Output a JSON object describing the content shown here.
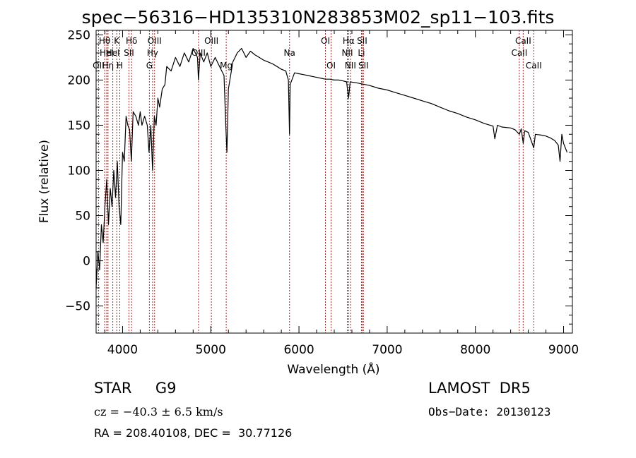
{
  "chart_data": {
    "type": "line",
    "title": "spec−56316−HD135310N283853M02_sp11−103.fits",
    "xlabel": "Wavelength (Å)",
    "ylabel": "Flux (relative)",
    "xlim": [
      3700,
      9100
    ],
    "ylim": [
      -80,
      255
    ],
    "x_ticks": [
      4000,
      5000,
      6000,
      7000,
      8000,
      9000
    ],
    "y_ticks": [
      -50,
      0,
      50,
      100,
      150,
      200,
      250
    ],
    "grid": false,
    "series": [
      {
        "color": "#000000",
        "points": [
          [
            3700,
            -30
          ],
          [
            3720,
            10
          ],
          [
            3740,
            -10
          ],
          [
            3760,
            40
          ],
          [
            3780,
            20
          ],
          [
            3800,
            60
          ],
          [
            3820,
            90
          ],
          [
            3840,
            40
          ],
          [
            3860,
            80
          ],
          [
            3880,
            60
          ],
          [
            3900,
            100
          ],
          [
            3920,
            70
          ],
          [
            3940,
            110
          ],
          [
            3960,
            60
          ],
          [
            3980,
            40
          ],
          [
            4000,
            120
          ],
          [
            4020,
            110
          ],
          [
            4040,
            160
          ],
          [
            4060,
            150
          ],
          [
            4080,
            145
          ],
          [
            4100,
            110
          ],
          [
            4120,
            165
          ],
          [
            4150,
            160
          ],
          [
            4180,
            150
          ],
          [
            4200,
            165
          ],
          [
            4220,
            150
          ],
          [
            4250,
            160
          ],
          [
            4280,
            150
          ],
          [
            4300,
            120
          ],
          [
            4320,
            150
          ],
          [
            4340,
            100
          ],
          [
            4360,
            160
          ],
          [
            4380,
            150
          ],
          [
            4400,
            180
          ],
          [
            4420,
            170
          ],
          [
            4450,
            190
          ],
          [
            4480,
            195
          ],
          [
            4500,
            215
          ],
          [
            4550,
            210
          ],
          [
            4600,
            225
          ],
          [
            4650,
            215
          ],
          [
            4700,
            230
          ],
          [
            4750,
            220
          ],
          [
            4800,
            235
          ],
          [
            4850,
            225
          ],
          [
            4860,
            200
          ],
          [
            4880,
            230
          ],
          [
            4920,
            220
          ],
          [
            4960,
            230
          ],
          [
            5000,
            215
          ],
          [
            5050,
            225
          ],
          [
            5100,
            215
          ],
          [
            5150,
            205
          ],
          [
            5170,
            150
          ],
          [
            5183,
            120
          ],
          [
            5200,
            190
          ],
          [
            5250,
            220
          ],
          [
            5300,
            230
          ],
          [
            5350,
            235
          ],
          [
            5400,
            225
          ],
          [
            5450,
            232
          ],
          [
            5500,
            228
          ],
          [
            5550,
            225
          ],
          [
            5600,
            222
          ],
          [
            5650,
            220
          ],
          [
            5700,
            218
          ],
          [
            5750,
            215
          ],
          [
            5800,
            212
          ],
          [
            5850,
            210
          ],
          [
            5880,
            200
          ],
          [
            5893,
            140
          ],
          [
            5900,
            195
          ],
          [
            5950,
            208
          ],
          [
            6000,
            207
          ],
          [
            6050,
            206
          ],
          [
            6100,
            205
          ],
          [
            6150,
            204
          ],
          [
            6200,
            203
          ],
          [
            6250,
            202
          ],
          [
            6300,
            201
          ],
          [
            6350,
            201
          ],
          [
            6400,
            200
          ],
          [
            6450,
            200
          ],
          [
            6500,
            199
          ],
          [
            6540,
            198
          ],
          [
            6563,
            180
          ],
          [
            6580,
            198
          ],
          [
            6650,
            197
          ],
          [
            6700,
            196
          ],
          [
            6750,
            195
          ],
          [
            6800,
            194
          ],
          [
            6900,
            191
          ],
          [
            7000,
            189
          ],
          [
            7100,
            186
          ],
          [
            7200,
            183
          ],
          [
            7300,
            180
          ],
          [
            7400,
            177
          ],
          [
            7500,
            174
          ],
          [
            7600,
            170
          ],
          [
            7700,
            166
          ],
          [
            7800,
            163
          ],
          [
            7900,
            159
          ],
          [
            8000,
            156
          ],
          [
            8100,
            152
          ],
          [
            8200,
            149
          ],
          [
            8220,
            135
          ],
          [
            8250,
            150
          ],
          [
            8300,
            148
          ],
          [
            8400,
            147
          ],
          [
            8450,
            145
          ],
          [
            8498,
            140
          ],
          [
            8520,
            146
          ],
          [
            8542,
            130
          ],
          [
            8560,
            144
          ],
          [
            8600,
            142
          ],
          [
            8662,
            125
          ],
          [
            8680,
            140
          ],
          [
            8750,
            139
          ],
          [
            8800,
            138
          ],
          [
            8850,
            136
          ],
          [
            8900,
            133
          ],
          [
            8940,
            128
          ],
          [
            8960,
            110
          ],
          [
            8980,
            140
          ],
          [
            9000,
            130
          ],
          [
            9020,
            125
          ],
          [
            9040,
            120
          ]
        ]
      }
    ],
    "lines": [
      {
        "x": 3727,
        "labels": [
          "OII"
        ],
        "rows": [
          2
        ]
      },
      {
        "x": 3797,
        "labels": [
          "Hθ"
        ],
        "rows": [
          0
        ]
      },
      {
        "x": 3820,
        "labels": [
          "HeI"
        ],
        "rows": [
          1
        ]
      },
      {
        "x": 3835,
        "labels": [
          "Hη"
        ],
        "rows": [
          2
        ]
      },
      {
        "x": 3889,
        "labels": [
          "HeI"
        ],
        "rows": [
          1
        ]
      },
      {
        "x": 3934,
        "labels": [
          "K"
        ],
        "rows": [
          0
        ]
      },
      {
        "x": 3968,
        "labels": [
          "H"
        ],
        "rows": [
          2
        ]
      },
      {
        "x": 4072,
        "labels": [
          "SII"
        ],
        "rows": [
          1
        ]
      },
      {
        "x": 4102,
        "labels": [
          "Hδ"
        ],
        "rows": [
          0
        ]
      },
      {
        "x": 4304,
        "labels": [
          "G"
        ],
        "rows": [
          2
        ]
      },
      {
        "x": 4340,
        "labels": [
          "Hγ"
        ],
        "rows": [
          1
        ]
      },
      {
        "x": 4363,
        "labels": [
          "OIII"
        ],
        "rows": [
          0
        ]
      },
      {
        "x": 4861,
        "labels": [
          "OIII"
        ],
        "rows": [
          1
        ]
      },
      {
        "x": 5007,
        "labels": [
          "OIII"
        ],
        "rows": [
          0
        ]
      },
      {
        "x": 5175,
        "labels": [
          "Mg"
        ],
        "rows": [
          2
        ]
      },
      {
        "x": 5893,
        "labels": [
          "Na"
        ],
        "rows": [
          1
        ]
      },
      {
        "x": 6300,
        "labels": [
          "OI"
        ],
        "rows": [
          0
        ]
      },
      {
        "x": 6364,
        "labels": [
          "OI"
        ],
        "rows": [
          2
        ]
      },
      {
        "x": 6548,
        "labels": [
          "NII"
        ],
        "rows": [
          1
        ]
      },
      {
        "x": 6563,
        "labels": [
          "Hα"
        ],
        "rows": [
          0
        ]
      },
      {
        "x": 6583,
        "labels": [
          "NII"
        ],
        "rows": [
          2
        ]
      },
      {
        "x": 6708,
        "labels": [
          "Li"
        ],
        "rows": [
          1
        ]
      },
      {
        "x": 6716,
        "labels": [
          "SII"
        ],
        "rows": [
          0
        ]
      },
      {
        "x": 6731,
        "labels": [
          "SII"
        ],
        "rows": [
          2
        ]
      },
      {
        "x": 8498,
        "labels": [
          "CaII"
        ],
        "rows": [
          1
        ]
      },
      {
        "x": 8542,
        "labels": [
          "CaII"
        ],
        "rows": [
          0
        ]
      },
      {
        "x": 8662,
        "labels": [
          "CaII"
        ],
        "rows": [
          2
        ]
      }
    ],
    "line_marker_color": "#b22222"
  },
  "info": {
    "star": "STAR     G9",
    "survey": "LAMOST  DR5",
    "cz": "cz = −40.3 ± 6.5 km/s",
    "obs_date": "Obs−Date: 20130123",
    "radec": "RA = 208.40108, DEC =  30.77126"
  }
}
